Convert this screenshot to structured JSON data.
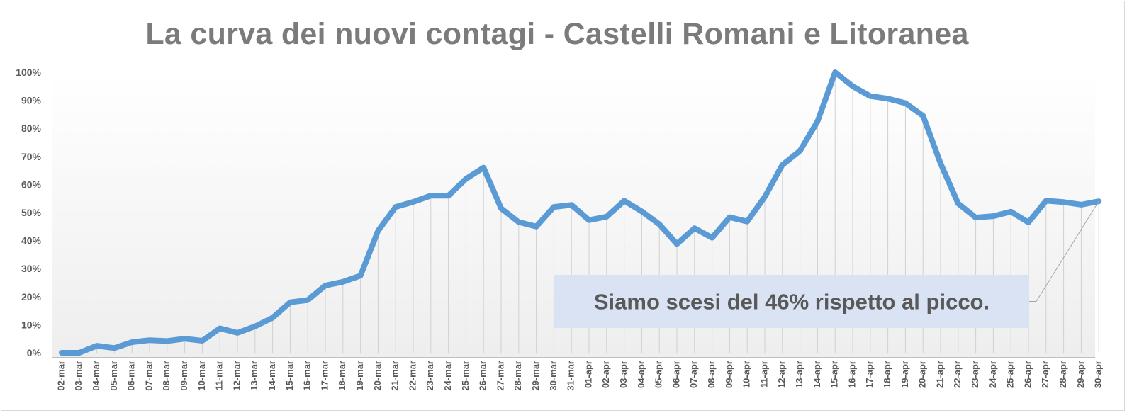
{
  "chart_data": {
    "type": "line",
    "title": "La curva dei nuovi contagi - Castelli Romani e Litoranea",
    "xlabel": "",
    "ylabel": "",
    "ylim": [
      0,
      100
    ],
    "y_ticks": [
      "0%",
      "10%",
      "20%",
      "30%",
      "40%",
      "50%",
      "60%",
      "70%",
      "80%",
      "90%",
      "100%"
    ],
    "grid": "vertical drop lines",
    "legend": "none",
    "colors": {
      "line": "#5b9bd5",
      "annotation_bg": "#dae3f3",
      "axis_text": "#595959",
      "title": "#7b7b7b"
    },
    "categories": [
      "02-mar",
      "03-mar",
      "04-mar",
      "05-mar",
      "06-mar",
      "07-mar",
      "08-mar",
      "09-mar",
      "10-mar",
      "11-mar",
      "12-mar",
      "13-mar",
      "14-mar",
      "15-mar",
      "16-mar",
      "17-mar",
      "18-mar",
      "19-mar",
      "20-mar",
      "21-mar",
      "22-mar",
      "23-mar",
      "24-mar",
      "25-mar",
      "26-mar",
      "27-mar",
      "28-mar",
      "29-mar",
      "30-mar",
      "31-mar",
      "01-apr",
      "02-apr",
      "03-apr",
      "04-apr",
      "05-apr",
      "06-apr",
      "07-apr",
      "08-apr",
      "09-apr",
      "10-apr",
      "11-apr",
      "12-apr",
      "13-apr",
      "14-apr",
      "15-apr",
      "16-apr",
      "17-apr",
      "18-apr",
      "19-apr",
      "20-apr",
      "21-apr",
      "22-apr",
      "23-apr",
      "24-apr",
      "25-apr",
      "26-apr",
      "27-apr",
      "28-apr",
      "29-apr",
      "30-apr"
    ],
    "series": [
      {
        "values": [
          0,
          0,
          2.5,
          1.7,
          3.8,
          4.5,
          4.2,
          5,
          4.3,
          8.7,
          7.1,
          9.4,
          12.5,
          18,
          18.8,
          24,
          25.3,
          27.5,
          43.5,
          52,
          53.8,
          56,
          56,
          62,
          66,
          51.5,
          46.6,
          45,
          52,
          52.7,
          47.3,
          48.5,
          54.2,
          50.4,
          45.8,
          38.8,
          44.4,
          41,
          48.3,
          46.8,
          55.6,
          67,
          72,
          82.5,
          100,
          95,
          91.5,
          90.6,
          89,
          84.5,
          67.5,
          53.2,
          48.2,
          48.7,
          50.3,
          46.5,
          54.2,
          53.7,
          52.8,
          54
        ]
      }
    ],
    "annotation": {
      "text": "Siamo scesi del 46% rispetto al picco.",
      "points_to": "30-apr"
    }
  }
}
